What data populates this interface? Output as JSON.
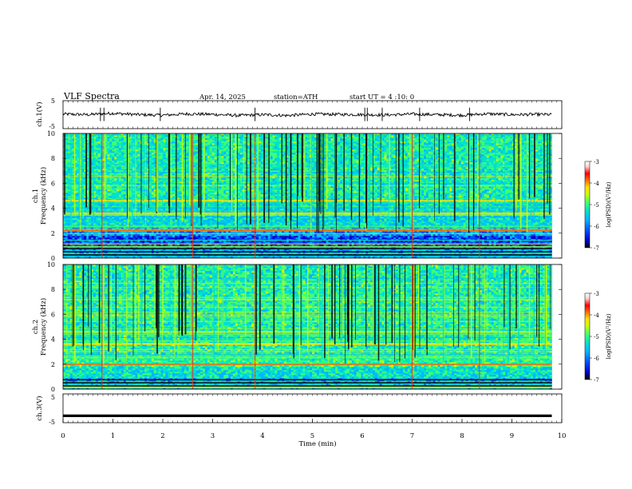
{
  "header": {
    "title": "VLF Spectra",
    "date": "Apr. 14, 2025",
    "station": "station=ATH",
    "start": "start UT =  4 :10: 0"
  },
  "colors": {
    "colormap": [
      "#000000",
      "#0000c8",
      "#0050ff",
      "#00b4ff",
      "#00e0d0",
      "#40ff70",
      "#c8ff00",
      "#ffe000",
      "#ff7000",
      "#ff0000",
      "#ffd0d0",
      "#ffffff"
    ],
    "trace": "#000000"
  },
  "chart_data": [
    {
      "type": "line",
      "panel": "ch.1 voltage",
      "ylabel": "ch.1(V)",
      "ylim": [
        -5,
        5
      ],
      "yticks": [
        "5",
        "-5"
      ],
      "xlim": [
        0,
        10
      ],
      "x": [
        0.0,
        0.5,
        1.0,
        1.5,
        2.0,
        2.5,
        3.0,
        3.5,
        4.0,
        4.5,
        5.0,
        5.5,
        6.0,
        6.5,
        7.0,
        7.5,
        8.0,
        8.5,
        9.0,
        9.5,
        9.8
      ],
      "y": [
        0.2,
        0.0,
        0.5,
        0.0,
        -0.2,
        0.3,
        0.1,
        -0.3,
        0.0,
        -0.3,
        0.2,
        0.1,
        0.0,
        -0.1,
        0.2,
        0.0,
        -0.2,
        0.3,
        0.0,
        0.1,
        0.0
      ]
    },
    {
      "type": "heatmap",
      "panel": "ch.1 spectrogram",
      "ylabel": "ch.1",
      "ylabel2": "Frequency (kHz)",
      "xlim": [
        0,
        10
      ],
      "ylim": [
        0,
        10
      ],
      "yticks": [
        "0",
        "2",
        "4",
        "6",
        "8",
        "10"
      ],
      "data_end_min": 9.8,
      "strong_lines_khz": [
        2.2,
        3.6,
        4.6
      ],
      "colorbar": {
        "label": "log(PSD)(V²/Hz)",
        "range": [
          -7,
          -3
        ],
        "ticks": [
          "-3",
          "-4",
          "-5",
          "-6",
          "-7"
        ]
      }
    },
    {
      "type": "heatmap",
      "panel": "ch.2 spectrogram",
      "ylabel": "ch.2",
      "ylabel2": "Frequency (kHz)",
      "xlim": [
        0,
        10
      ],
      "ylim": [
        0,
        10
      ],
      "yticks": [
        "0",
        "2",
        "4",
        "6",
        "8",
        "10"
      ],
      "data_end_min": 9.8,
      "strong_lines_khz": [
        2.0,
        3.6,
        4.6
      ],
      "colorbar": {
        "label": "log(PSD)(V²/Hz)",
        "range": [
          -7,
          -3
        ],
        "ticks": [
          "-3",
          "-4",
          "-5",
          "-6",
          "-7"
        ]
      }
    },
    {
      "type": "line",
      "panel": "ch.3 voltage",
      "ylabel": "ch.3(V)",
      "ylim": [
        -5,
        5
      ],
      "yticks": [
        "5",
        "-5"
      ],
      "xlim": [
        0,
        10
      ],
      "x": [
        0,
        9.8
      ],
      "y": [
        -2.6,
        -2.6
      ]
    }
  ],
  "xaxis": {
    "label": "Time (min)",
    "ticks": [
      "0",
      "1",
      "2",
      "3",
      "4",
      "5",
      "6",
      "7",
      "8",
      "9",
      "10"
    ]
  }
}
